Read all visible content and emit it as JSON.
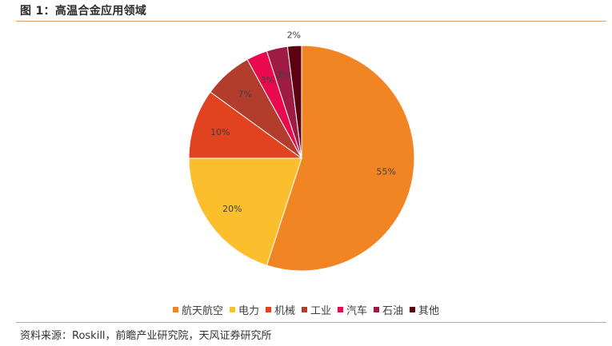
{
  "header": {
    "title": "图 1：高温合金应用领域"
  },
  "footer": {
    "source": "资料来源：Roskill，前瞻产业研究院，天风证券研究所"
  },
  "chart_data": {
    "type": "pie",
    "title": "",
    "start_angle_deg": 0,
    "direction": "clockwise",
    "legend_position": "bottom",
    "slices": [
      {
        "label": "航天航空",
        "value": 55,
        "display": "55%",
        "color": "#F28523"
      },
      {
        "label": "电力",
        "value": 20,
        "display": "20%",
        "color": "#FBBF2D"
      },
      {
        "label": "机械",
        "value": 10,
        "display": "10%",
        "color": "#E1421F"
      },
      {
        "label": "工业",
        "value": 7,
        "display": "7%",
        "color": "#B23D2C"
      },
      {
        "label": "汽车",
        "value": 3,
        "display": "3%",
        "color": "#E8094E"
      },
      {
        "label": "石油",
        "value": 3,
        "display": "3%",
        "color": "#9E1B43"
      },
      {
        "label": "其他",
        "value": 2,
        "display": "2%",
        "color": "#5B0010"
      }
    ]
  }
}
